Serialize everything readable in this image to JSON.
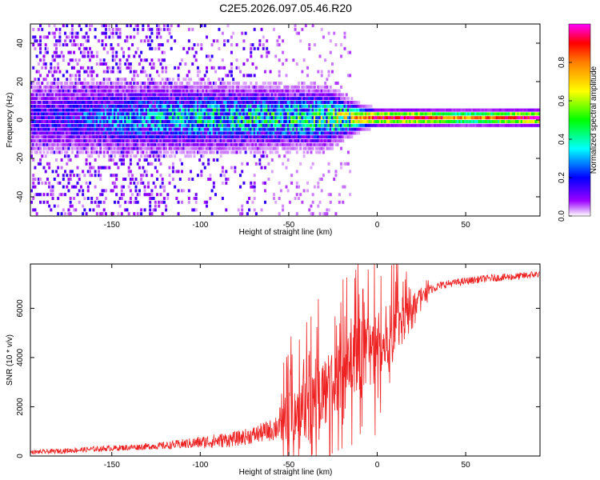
{
  "figure_title": "C2E5.2026.097.05.46.R20",
  "chart_data": [
    {
      "type": "heatmap",
      "title": "C2E5.2026.097.05.46.R20",
      "xlabel": "Height of straight line (km)",
      "ylabel": "Frequency (Hz)",
      "xlim": [
        -196,
        92
      ],
      "ylim": [
        -50,
        50
      ],
      "x_ticks": [
        -150,
        -100,
        -50,
        0,
        50
      ],
      "y_ticks": [
        -40,
        -20,
        0,
        20,
        40
      ],
      "colorbar": {
        "label": "Normalized spectral amplitude",
        "range": [
          0,
          1
        ],
        "ticks": [
          0.0,
          0.2,
          0.4,
          0.6,
          0.8
        ],
        "colormap": [
          "#ffffff",
          "#9b00ff",
          "#0000ff",
          "#00ffff",
          "#00ff00",
          "#ffff00",
          "#ff7f00",
          "#ff0000",
          "#ff00ff"
        ]
      },
      "description_points": [
        {
          "x": -180,
          "width_hz": 10,
          "peak_amp": 0.25
        },
        {
          "x": -150,
          "width_hz": 10,
          "peak_amp": 0.35
        },
        {
          "x": -100,
          "width_hz": 9,
          "peak_amp": 0.45
        },
        {
          "x": -50,
          "width_hz": 8,
          "peak_amp": 0.5
        },
        {
          "x": -30,
          "width_hz": 8,
          "peak_amp": 0.55
        },
        {
          "x": -10,
          "width_hz": 3,
          "peak_amp": 0.75
        },
        {
          "x": 0,
          "width_hz": 2,
          "peak_amp": 0.9
        },
        {
          "x": 20,
          "width_hz": 2,
          "peak_amp": 0.95
        },
        {
          "x": 50,
          "width_hz": 2,
          "peak_amp": 0.7
        },
        {
          "x": 90,
          "width_hz": 2,
          "peak_amp": 0.98
        }
      ]
    },
    {
      "type": "line",
      "xlabel": "Height of straight line (km)",
      "ylabel": "SNR (10 * v/v)",
      "xlim": [
        -196,
        92
      ],
      "ylim": [
        0,
        7800
      ],
      "x_ticks": [
        -150,
        -100,
        -50,
        0,
        50
      ],
      "y_ticks": [
        0,
        2000,
        4000,
        6000
      ],
      "color": "#ee2222",
      "series": [
        {
          "x": [
            -196,
            -180,
            -160,
            -140,
            -120,
            -100,
            -90,
            -80,
            -70,
            -60,
            -55,
            -50,
            -45,
            -40,
            -35,
            -30,
            -25,
            -20,
            -15,
            -10,
            -5,
            0,
            5,
            10,
            15,
            20,
            25,
            30,
            40,
            50,
            60,
            70,
            80,
            92
          ],
          "y": [
            150,
            200,
            280,
            350,
            420,
            550,
            620,
            700,
            850,
            1050,
            1300,
            1600,
            1900,
            2200,
            2500,
            2600,
            2900,
            3200,
            3600,
            4100,
            4300,
            4100,
            4600,
            5200,
            5700,
            6100,
            6500,
            6800,
            7000,
            7100,
            7200,
            7250,
            7300,
            7400
          ],
          "noise_band": [
            80,
            100,
            110,
            120,
            150,
            250,
            300,
            300,
            350,
            450,
            700,
            1200,
            1300,
            1400,
            1500,
            1500,
            1300,
            1400,
            1500,
            1600,
            1500,
            1700,
            1500,
            1200,
            800,
            500,
            300,
            200,
            150,
            150,
            150,
            150,
            150,
            150
          ]
        }
      ]
    }
  ]
}
